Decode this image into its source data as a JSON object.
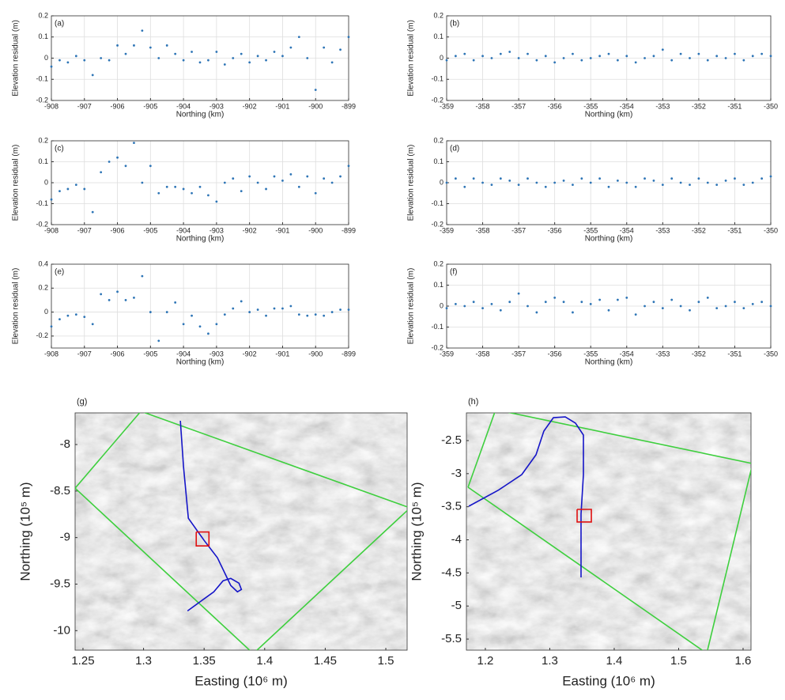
{
  "chart_data": [
    {
      "type": "scatter",
      "label": "(a)",
      "xlabel": "Northing (km)",
      "ylabel": "Elevation residual (m)",
      "color": "#2e75b6",
      "grid": true,
      "x": [
        -908,
        -907.75,
        -907.5,
        -907.25,
        -907,
        -906.75,
        -906.5,
        -906.25,
        -906,
        -905.75,
        -905.5,
        -905.25,
        -905,
        -904.75,
        -904.5,
        -904.25,
        -904,
        -903.75,
        -903.5,
        -903.25,
        -903,
        -902.75,
        -902.5,
        -902.25,
        -902,
        -901.75,
        -901.5,
        -901.25,
        -901,
        -900.75,
        -900.5,
        -900.25,
        -900,
        -899.75,
        -899.5,
        -899.25,
        -899
      ],
      "values": [
        -0.04,
        -0.01,
        -0.02,
        0.01,
        -0.01,
        -0.08,
        0.0,
        -0.01,
        0.06,
        0.02,
        0.06,
        0.13,
        0.05,
        0.0,
        0.06,
        0.02,
        -0.01,
        0.03,
        -0.02,
        -0.01,
        0.03,
        -0.03,
        0.0,
        0.02,
        -0.02,
        0.01,
        -0.01,
        0.03,
        0.01,
        0.05,
        0.1,
        0.0,
        -0.15,
        0.05,
        -0.02,
        0.04,
        0.1
      ],
      "xlim": [
        -908,
        -899
      ],
      "ylim": [
        -0.2,
        0.2
      ],
      "xticks": [
        -908,
        -907,
        -906,
        -905,
        -904,
        -903,
        -902,
        -901,
        -900,
        -899
      ],
      "yticks": [
        -0.2,
        -0.1,
        0,
        0.1,
        0.2
      ]
    },
    {
      "type": "scatter",
      "label": "(b)",
      "xlabel": "Northing (km)",
      "ylabel": "Elevation residual (m)",
      "color": "#2e75b6",
      "grid": true,
      "x": [
        -359,
        -358.75,
        -358.5,
        -358.25,
        -358,
        -357.75,
        -357.5,
        -357.25,
        -357,
        -356.75,
        -356.5,
        -356.25,
        -356,
        -355.75,
        -355.5,
        -355.25,
        -355,
        -354.75,
        -354.5,
        -354.25,
        -354,
        -353.75,
        -353.5,
        -353.25,
        -353,
        -352.75,
        -352.5,
        -352.25,
        -352,
        -351.75,
        -351.5,
        -351.25,
        -351,
        -350.75,
        -350.5,
        -350.25,
        -350
      ],
      "values": [
        -0.01,
        0.01,
        0.02,
        -0.01,
        0.01,
        0.0,
        0.02,
        0.03,
        0.0,
        0.02,
        -0.01,
        0.01,
        -0.02,
        0.0,
        0.02,
        -0.01,
        0.0,
        0.01,
        0.02,
        -0.01,
        0.01,
        -0.02,
        0.0,
        0.01,
        0.04,
        -0.01,
        0.02,
        0.0,
        0.02,
        -0.01,
        0.01,
        0.0,
        0.02,
        -0.01,
        0.01,
        0.02,
        0.01
      ],
      "xlim": [
        -359,
        -350
      ],
      "ylim": [
        -0.2,
        0.2
      ],
      "xticks": [
        -359,
        -358,
        -357,
        -356,
        -355,
        -354,
        -353,
        -352,
        -351,
        -350
      ],
      "yticks": [
        -0.2,
        -0.1,
        0,
        0.1,
        0.2
      ]
    },
    {
      "type": "scatter",
      "label": "(c)",
      "xlabel": "Northing (km)",
      "ylabel": "Elevation residual (m)",
      "color": "#2e75b6",
      "grid": true,
      "x": [
        -908,
        -907.75,
        -907.5,
        -907.25,
        -907,
        -906.75,
        -906.5,
        -906.25,
        -906,
        -905.75,
        -905.5,
        -905.25,
        -905,
        -904.75,
        -904.5,
        -904.25,
        -904,
        -903.75,
        -903.5,
        -903.25,
        -903,
        -902.75,
        -902.5,
        -902.25,
        -902,
        -901.75,
        -901.5,
        -901.25,
        -901,
        -900.75,
        -900.5,
        -900.25,
        -900,
        -899.75,
        -899.5,
        -899.25,
        -899
      ],
      "values": [
        -0.08,
        -0.04,
        -0.03,
        -0.01,
        -0.03,
        -0.14,
        0.05,
        0.1,
        0.12,
        0.08,
        0.19,
        0.0,
        0.08,
        -0.05,
        -0.02,
        -0.02,
        -0.03,
        -0.05,
        -0.02,
        -0.06,
        -0.09,
        0.0,
        0.02,
        -0.04,
        0.03,
        0.0,
        -0.03,
        0.03,
        0.01,
        0.04,
        -0.02,
        0.03,
        -0.05,
        0.02,
        0.0,
        0.03,
        0.08
      ],
      "xlim": [
        -908,
        -899
      ],
      "ylim": [
        -0.2,
        0.2
      ],
      "xticks": [
        -908,
        -907,
        -906,
        -905,
        -904,
        -903,
        -902,
        -901,
        -900,
        -899
      ],
      "yticks": [
        -0.2,
        -0.1,
        0,
        0.1,
        0.2
      ]
    },
    {
      "type": "scatter",
      "label": "(d)",
      "xlabel": "Northing (km)",
      "ylabel": "Elevation residual (m)",
      "color": "#2e75b6",
      "grid": true,
      "x": [
        -359,
        -358.75,
        -358.5,
        -358.25,
        -358,
        -357.75,
        -357.5,
        -357.25,
        -357,
        -356.75,
        -356.5,
        -356.25,
        -356,
        -355.75,
        -355.5,
        -355.25,
        -355,
        -354.75,
        -354.5,
        -354.25,
        -354,
        -353.75,
        -353.5,
        -353.25,
        -353,
        -352.75,
        -352.5,
        -352.25,
        -352,
        -351.75,
        -351.5,
        -351.25,
        -351,
        -350.75,
        -350.5,
        -350.25,
        -350
      ],
      "values": [
        0.0,
        0.02,
        -0.02,
        0.02,
        0.0,
        -0.01,
        0.02,
        0.01,
        -0.01,
        0.02,
        0.0,
        -0.02,
        0.0,
        0.01,
        -0.01,
        0.02,
        0.0,
        0.02,
        -0.02,
        0.01,
        0.0,
        -0.02,
        0.02,
        0.01,
        -0.01,
        0.02,
        0.0,
        -0.01,
        0.02,
        0.0,
        -0.01,
        0.01,
        0.02,
        -0.01,
        0.0,
        0.02,
        0.03
      ],
      "xlim": [
        -359,
        -350
      ],
      "ylim": [
        -0.2,
        0.2
      ],
      "xticks": [
        -359,
        -358,
        -357,
        -356,
        -355,
        -354,
        -353,
        -352,
        -351,
        -350
      ],
      "yticks": [
        -0.2,
        -0.1,
        0,
        0.1,
        0.2
      ]
    },
    {
      "type": "scatter",
      "label": "(e)",
      "xlabel": "Northing (km)",
      "ylabel": "Elevation residual (m)",
      "color": "#2e75b6",
      "grid": true,
      "x": [
        -908,
        -907.75,
        -907.5,
        -907.25,
        -907,
        -906.75,
        -906.5,
        -906.25,
        -906,
        -905.75,
        -905.5,
        -905.25,
        -905,
        -904.75,
        -904.5,
        -904.25,
        -904,
        -903.75,
        -903.5,
        -903.25,
        -903,
        -902.75,
        -902.5,
        -902.25,
        -902,
        -901.75,
        -901.5,
        -901.25,
        -901,
        -900.75,
        -900.5,
        -900.25,
        -900,
        -899.75,
        -899.5,
        -899.25,
        -899
      ],
      "values": [
        -0.12,
        -0.06,
        -0.03,
        -0.02,
        -0.04,
        -0.1,
        0.15,
        0.1,
        0.17,
        0.1,
        0.12,
        0.3,
        0.0,
        -0.24,
        0.0,
        0.08,
        -0.1,
        -0.03,
        -0.12,
        -0.18,
        -0.1,
        -0.02,
        0.03,
        0.09,
        0.0,
        0.02,
        -0.03,
        0.03,
        0.03,
        0.05,
        -0.02,
        -0.03,
        -0.02,
        -0.03,
        0.0,
        0.02,
        0.02
      ],
      "xlim": [
        -908,
        -899
      ],
      "ylim": [
        -0.3,
        0.4
      ],
      "xticks": [
        -908,
        -907,
        -906,
        -905,
        -904,
        -903,
        -902,
        -901,
        -900,
        -899
      ],
      "yticks": [
        -0.2,
        0,
        0.2,
        0.4
      ]
    },
    {
      "type": "scatter",
      "label": "(f)",
      "xlabel": "Northing (km)",
      "ylabel": "Elevation residual (m)",
      "color": "#2e75b6",
      "grid": true,
      "x": [
        -359,
        -358.75,
        -358.5,
        -358.25,
        -358,
        -357.75,
        -357.5,
        -357.25,
        -357,
        -356.75,
        -356.5,
        -356.25,
        -356,
        -355.75,
        -355.5,
        -355.25,
        -355,
        -354.75,
        -354.5,
        -354.25,
        -354,
        -353.75,
        -353.5,
        -353.25,
        -353,
        -352.75,
        -352.5,
        -352.25,
        -352,
        -351.75,
        -351.5,
        -351.25,
        -351,
        -350.75,
        -350.5,
        -350.25,
        -350
      ],
      "values": [
        -0.01,
        0.01,
        0.0,
        0.02,
        -0.01,
        0.01,
        -0.02,
        0.02,
        0.06,
        0.0,
        -0.03,
        0.02,
        0.04,
        0.02,
        -0.03,
        0.02,
        0.01,
        0.03,
        -0.02,
        0.03,
        0.04,
        -0.04,
        0.0,
        0.02,
        -0.01,
        0.03,
        0.0,
        -0.02,
        0.02,
        0.04,
        -0.01,
        0.0,
        0.02,
        -0.01,
        0.01,
        0.02,
        0.0
      ],
      "xlim": [
        -359,
        -350
      ],
      "ylim": [
        -0.2,
        0.2
      ],
      "xticks": [
        -359,
        -358,
        -357,
        -356,
        -355,
        -354,
        -353,
        -352,
        -351,
        -350
      ],
      "yticks": [
        -0.2,
        -0.1,
        0,
        0.1,
        0.2
      ]
    },
    {
      "type": "map",
      "label": "(g)",
      "xlabel": "Easting (10⁶ m)",
      "ylabel": "Northing (10⁵ m)",
      "grid": false,
      "xlim": [
        1.2435,
        1.5176
      ],
      "ylim": [
        -10.21,
        -7.66
      ],
      "xticks": [
        1.25,
        1.3,
        1.35,
        1.4,
        1.45,
        1.5
      ],
      "yticks": [
        -10,
        -9.5,
        -9,
        -8.5,
        -8
      ],
      "lines": [
        {
          "color": "#3ecf3e",
          "x": [
            1.2435,
            1.2978,
            1.52,
            1.3906,
            1.2435
          ],
          "y": [
            -8.469,
            -7.643,
            -8.681,
            -10.247,
            -8.469
          ]
        },
        {
          "color": "#1515c8",
          "x": [
            1.3304,
            1.333,
            1.337,
            1.35,
            1.361,
            1.372,
            1.3775,
            1.3808,
            1.3788,
            1.372,
            1.3657,
            1.358,
            1.3363
          ],
          "y": [
            -7.745,
            -8.239,
            -8.792,
            -9.03,
            -9.217,
            -9.515,
            -9.583,
            -9.558,
            -9.49,
            -9.439,
            -9.464,
            -9.583,
            -9.788
          ]
        },
        {
          "color": "#e01010",
          "x": [
            1.3435,
            1.354,
            1.354,
            1.3435,
            1.3435
          ],
          "y": [
            -8.94,
            -8.94,
            -9.09,
            -9.09,
            -8.94
          ]
        }
      ]
    },
    {
      "type": "map",
      "label": "(h)",
      "xlabel": "Easting (10⁶ m)",
      "ylabel": "Northing (10⁵ m)",
      "grid": false,
      "xlim": [
        1.1706,
        1.6123
      ],
      "ylim": [
        -5.667,
        -2.082
      ],
      "xticks": [
        1.2,
        1.3,
        1.4,
        1.5,
        1.6
      ],
      "yticks": [
        -5.5,
        -5,
        -4.5,
        -4,
        -3.5,
        -3,
        -2.5
      ],
      "lines": [
        {
          "color": "#3ecf3e",
          "x": [
            1.1731,
            1.216,
            1.6148,
            1.5436,
            1.1731
          ],
          "y": [
            -3.205,
            -2.034,
            -2.848,
            -5.715,
            -3.205
          ]
        },
        {
          "color": "#1515c8",
          "x": [
            1.1743,
            1.2197,
            1.2565,
            1.2786,
            1.2908,
            1.3056,
            1.324,
            1.3399,
            1.3522,
            1.3522,
            1.3485,
            1.3485
          ],
          "y": [
            -3.492,
            -3.253,
            -3.014,
            -2.715,
            -2.357,
            -2.154,
            -2.142,
            -2.237,
            -2.417,
            -3.014,
            -3.611,
            -4.567
          ]
        },
        {
          "color": "#e01010",
          "x": [
            1.3424,
            1.3645,
            1.3645,
            1.3424,
            1.3424
          ],
          "y": [
            -3.54,
            -3.54,
            -3.73,
            -3.73,
            -3.54
          ]
        }
      ]
    }
  ]
}
